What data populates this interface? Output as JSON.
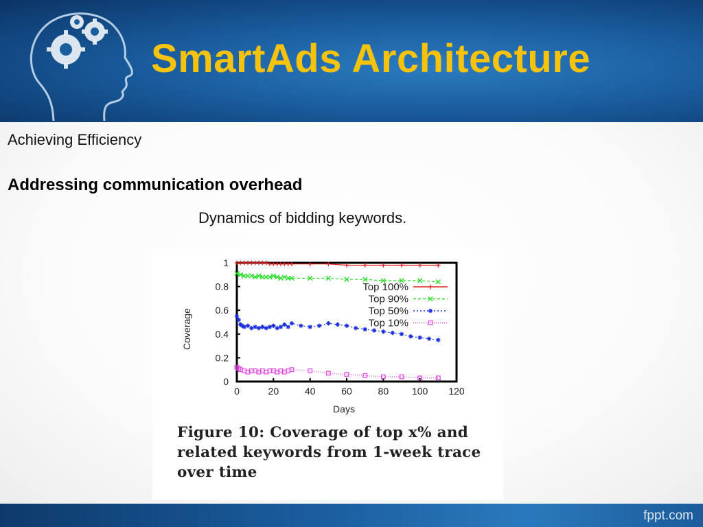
{
  "slide": {
    "title": "SmartAds Architecture",
    "subtitle": "Achieving Efficiency",
    "heading": "Addressing communication overhead",
    "caption": "Dynamics of bidding keywords.",
    "figure_caption": "Figure 10:  Coverage of top x% and related keywords from 1-week trace over time",
    "footer_brand": "fppt.com"
  },
  "colors": {
    "title": "#f5c20d",
    "header_blue": "#1a5d9f",
    "series": [
      "#e02020",
      "#22dd22",
      "#1a2ee0",
      "#e040e0"
    ]
  },
  "chart_data": {
    "type": "line",
    "xlabel": "Days",
    "ylabel": "Coverage",
    "xlim": [
      0,
      120
    ],
    "ylim": [
      0,
      1
    ],
    "xticks": [
      0,
      20,
      40,
      60,
      80,
      100,
      120
    ],
    "yticks": [
      0,
      0.2,
      0.4,
      0.6,
      0.8,
      1
    ],
    "legend_position": "top-right",
    "series": [
      {
        "name": "Top 100%",
        "marker": "+",
        "color": "#e02020",
        "x": [
          0,
          2,
          4,
          6,
          8,
          10,
          12,
          14,
          16,
          18,
          20,
          22,
          24,
          26,
          28,
          30,
          40,
          50,
          60,
          70,
          80,
          90,
          100,
          110
        ],
        "y": [
          1.0,
          1.0,
          1.0,
          1.0,
          1.0,
          1.0,
          1.0,
          1.0,
          1.0,
          0.99,
          0.99,
          0.99,
          0.99,
          0.99,
          0.99,
          0.99,
          0.99,
          0.99,
          0.98,
          0.98,
          0.98,
          0.98,
          0.98,
          0.98
        ]
      },
      {
        "name": "Top 90%",
        "marker": "x",
        "color": "#22dd22",
        "x": [
          0,
          2,
          4,
          6,
          8,
          10,
          12,
          14,
          16,
          18,
          20,
          22,
          24,
          26,
          28,
          30,
          40,
          50,
          60,
          70,
          80,
          90,
          100,
          110
        ],
        "y": [
          0.91,
          0.9,
          0.89,
          0.89,
          0.89,
          0.88,
          0.89,
          0.88,
          0.88,
          0.88,
          0.89,
          0.88,
          0.87,
          0.88,
          0.87,
          0.87,
          0.87,
          0.87,
          0.86,
          0.86,
          0.85,
          0.85,
          0.85,
          0.84
        ]
      },
      {
        "name": "Top 50%",
        "marker": "*",
        "color": "#1a2ee0",
        "x": [
          0,
          1,
          2,
          3,
          4,
          6,
          8,
          10,
          12,
          14,
          16,
          18,
          20,
          22,
          24,
          26,
          28,
          30,
          35,
          40,
          45,
          50,
          55,
          60,
          65,
          70,
          75,
          80,
          85,
          90,
          95,
          100,
          105,
          110
        ],
        "y": [
          0.55,
          0.52,
          0.48,
          0.47,
          0.46,
          0.47,
          0.45,
          0.46,
          0.45,
          0.46,
          0.45,
          0.46,
          0.47,
          0.45,
          0.46,
          0.48,
          0.46,
          0.49,
          0.47,
          0.46,
          0.47,
          0.49,
          0.48,
          0.47,
          0.45,
          0.44,
          0.43,
          0.42,
          0.41,
          0.4,
          0.38,
          0.37,
          0.36,
          0.35
        ]
      },
      {
        "name": "Top 10%",
        "marker": "square",
        "color": "#e040e0",
        "x": [
          0,
          1,
          2,
          4,
          6,
          8,
          10,
          12,
          14,
          16,
          18,
          20,
          22,
          24,
          26,
          28,
          30,
          40,
          50,
          60,
          70,
          80,
          90,
          100,
          110
        ],
        "y": [
          0.12,
          0.11,
          0.1,
          0.09,
          0.08,
          0.09,
          0.09,
          0.08,
          0.09,
          0.08,
          0.09,
          0.09,
          0.08,
          0.09,
          0.08,
          0.09,
          0.1,
          0.09,
          0.07,
          0.06,
          0.05,
          0.04,
          0.04,
          0.03,
          0.03
        ]
      }
    ]
  }
}
